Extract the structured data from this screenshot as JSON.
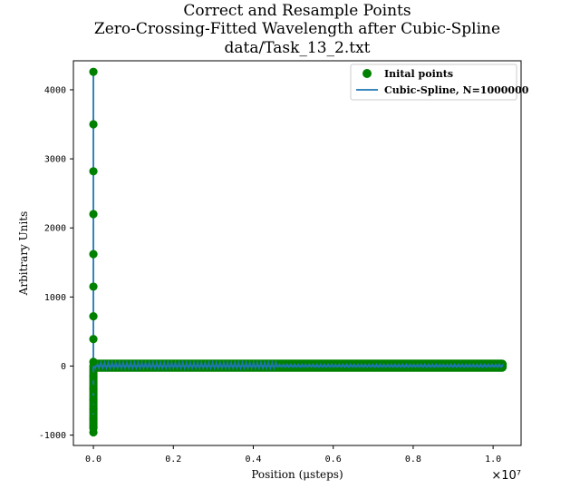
{
  "chart_data": {
    "type": "scatter",
    "title_lines": [
      "Correct and Resample Points",
      "Zero-Crossing-Fitted Wavelength after Cubic-Spline",
      "data/Task_13_2.txt"
    ],
    "xlabel": "Position (μsteps)",
    "ylabel": "Arbitrary Units",
    "x_offset_label": "×10⁷",
    "xlim": [
      -0.05,
      1.07
    ],
    "ylim": [
      -1150,
      4420
    ],
    "x_ticks": [
      0.0,
      0.2,
      0.4,
      0.6,
      0.8,
      1.0
    ],
    "x_tick_labels": [
      "0.0",
      "0.2",
      "0.4",
      "0.6",
      "0.8",
      "1.0"
    ],
    "y_ticks": [
      -1000,
      0,
      1000,
      2000,
      3000,
      4000
    ],
    "y_tick_labels": [
      "-1000",
      "0",
      "1000",
      "2000",
      "3000",
      "4000"
    ],
    "grid": false,
    "legend_position": "top-right",
    "series": [
      {
        "name": "Inital points",
        "kind": "scatter",
        "color": "#008000",
        "points_x": [
          0.0,
          0.0,
          0.0,
          0.0,
          0.0,
          0.0,
          0.0,
          0.0,
          0.0,
          0.0,
          0.0,
          0.0,
          0.0,
          0.0,
          0.0,
          0.0
        ],
        "points_y": [
          4260,
          3500,
          2820,
          2200,
          1620,
          1150,
          720,
          390,
          60,
          -150,
          -330,
          -490,
          -620,
          -760,
          -880,
          -960
        ],
        "band_x_range": [
          0.0,
          1.025
        ],
        "band_y_range": [
          -30,
          40
        ]
      },
      {
        "name": "Cubic-Spline, N=1000000",
        "kind": "line",
        "color": "#1f77b4",
        "vertical_x": 0.0,
        "vertical_y_range": [
          -970,
          4260
        ],
        "band_x_range": [
          0.0,
          1.025
        ],
        "band_y_range": [
          -40,
          60
        ]
      }
    ]
  }
}
